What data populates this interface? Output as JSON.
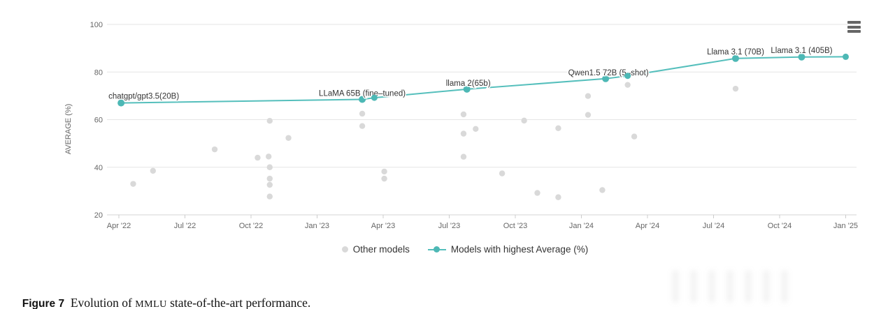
{
  "figure": {
    "caption_label": "Figure 7",
    "caption_pre": "  Evolution of ",
    "caption_acronym": "MMLU",
    "caption_post": " state-of-the-art performance."
  },
  "header": {
    "menu_icon": "hamburger-menu-icon",
    "menu_color": "#666666"
  },
  "chart_data": {
    "type": "line+scatter",
    "title": "",
    "xlabel": "",
    "ylabel": "AVERAGE (%)",
    "ylim": [
      20,
      100
    ],
    "y_ticks": [
      20,
      40,
      60,
      80,
      100
    ],
    "x_ticks": [
      "Apr '22",
      "Jul '22",
      "Oct '22",
      "Jan '23",
      "Apr '23",
      "Jul '23",
      "Oct '23",
      "Jan '24",
      "Apr '24",
      "Jul '24",
      "Oct '24",
      "Jan '25"
    ],
    "x_unit": "months since Apr 2022 (3 months per tick)",
    "x_range_months": [
      0,
      33
    ],
    "grid": "horizontal",
    "legend_position": "bottom-center",
    "axis_text_color": "#666666",
    "gridline_color": "#e6e6e6",
    "axis_line_color": "#d6d6d6",
    "label_text_color": "#333333",
    "series": [
      {
        "name": "Other models",
        "type": "scatter",
        "color": "#d9d9d9",
        "points": [
          [
            0.65,
            33.0
          ],
          [
            1.55,
            38.5
          ],
          [
            4.35,
            47.5
          ],
          [
            6.3,
            44.0
          ],
          [
            6.8,
            44.5
          ],
          [
            6.85,
            59.5
          ],
          [
            6.85,
            40.0
          ],
          [
            6.85,
            35.2
          ],
          [
            6.85,
            32.6
          ],
          [
            6.85,
            27.7
          ],
          [
            7.7,
            52.3
          ],
          [
            11.05,
            62.5
          ],
          [
            11.05,
            57.3
          ],
          [
            12.05,
            38.2
          ],
          [
            12.05,
            35.2
          ],
          [
            15.65,
            62.2
          ],
          [
            15.65,
            54.1
          ],
          [
            15.65,
            44.4
          ],
          [
            16.2,
            56.1
          ],
          [
            17.4,
            37.4
          ],
          [
            18.4,
            59.6
          ],
          [
            19.0,
            29.2
          ],
          [
            19.95,
            56.4
          ],
          [
            19.95,
            27.4
          ],
          [
            21.3,
            69.9
          ],
          [
            21.3,
            62.0
          ],
          [
            21.95,
            30.4
          ],
          [
            23.1,
            74.6
          ],
          [
            23.4,
            52.9
          ],
          [
            28.0,
            73.0
          ]
        ]
      },
      {
        "name": "Models with highest Average (%)",
        "type": "line",
        "color": "#55bfbc",
        "marker_color": "#4db8b5",
        "points": [
          {
            "m": 0.1,
            "v": 67.0,
            "label": "chatgpt/gpt3.5(20B)",
            "anchor": "start",
            "dx": -18,
            "dy": -6
          },
          {
            "m": 11.05,
            "v": 68.5,
            "label": "LLaMA 65B (fine–tuned)",
            "anchor": "middle",
            "dx": 0,
            "dy": -5
          },
          {
            "m": 11.6,
            "v": 69.2
          },
          {
            "m": 15.8,
            "v": 72.8,
            "label": "llama 2(65b)",
            "anchor": "middle",
            "dx": 2,
            "dy": -5
          },
          {
            "m": 22.1,
            "v": 77.2,
            "label": "Qwen1.5 72B (5–shot)",
            "anchor": "middle",
            "dx": 4,
            "dy": -5
          },
          {
            "m": 23.1,
            "v": 78.4
          },
          {
            "m": 28.0,
            "v": 85.7,
            "label": "Llama 3.1 (70B)",
            "anchor": "middle",
            "dx": 0,
            "dy": -6
          },
          {
            "m": 31.0,
            "v": 86.3,
            "label": "Llama 3.1 (405B)",
            "anchor": "middle",
            "dx": 0,
            "dy": -6
          },
          {
            "m": 33.0,
            "v": 86.4
          }
        ]
      }
    ]
  }
}
